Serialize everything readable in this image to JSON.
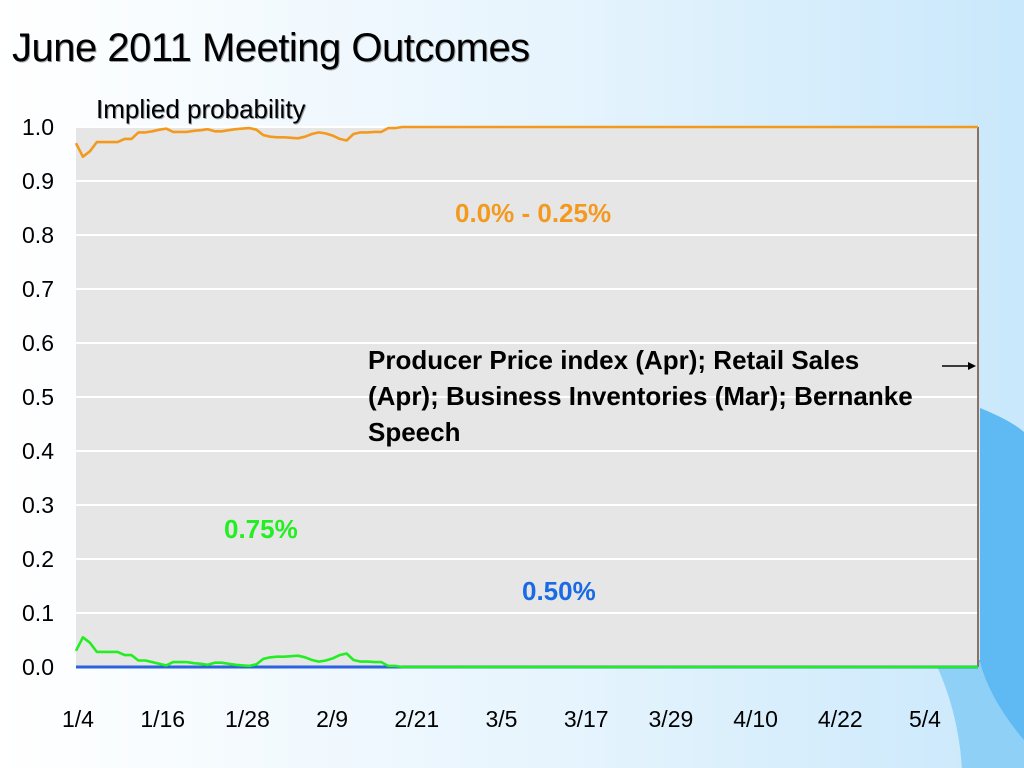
{
  "title": "June 2011 Meeting Outcomes",
  "subtitle": "Implied probability",
  "annotation": "Producer Price index (Apr); Retail Sales (Apr); Business Inventories (Mar); Bernanke Speech",
  "chart_data": {
    "type": "line",
    "ylim": [
      0,
      1
    ],
    "yticks": [
      "0.0",
      "0.1",
      "0.2",
      "0.3",
      "0.4",
      "0.5",
      "0.6",
      "0.7",
      "0.8",
      "0.9",
      "1.0"
    ],
    "xticks": [
      "1/4",
      "1/16",
      "1/28",
      "2/9",
      "2/21",
      "3/5",
      "3/17",
      "3/29",
      "4/10",
      "4/22",
      "5/4"
    ],
    "grid": true,
    "x_count": 130,
    "series": [
      {
        "name": "0.0% - 0.25%",
        "color": "#f39a1e",
        "points": [
          [
            0,
            0.97
          ],
          [
            1,
            0.945
          ],
          [
            2,
            0.955
          ],
          [
            3,
            0.972
          ],
          [
            4,
            0.972
          ],
          [
            5,
            0.972
          ],
          [
            6,
            0.972
          ],
          [
            7,
            0.978
          ],
          [
            8,
            0.978
          ],
          [
            9,
            0.99
          ],
          [
            10,
            0.99
          ],
          [
            11,
            0.992
          ],
          [
            12,
            0.995
          ],
          [
            13,
            0.997
          ],
          [
            14,
            0.991
          ],
          [
            15,
            0.991
          ],
          [
            16,
            0.991
          ],
          [
            17,
            0.993
          ],
          [
            18,
            0.994
          ],
          [
            19,
            0.996
          ],
          [
            20,
            0.992
          ],
          [
            21,
            0.992
          ],
          [
            22,
            0.994
          ],
          [
            23,
            0.996
          ],
          [
            24,
            0.997
          ],
          [
            25,
            0.998
          ],
          [
            26,
            0.995
          ],
          [
            27,
            0.985
          ],
          [
            28,
            0.982
          ],
          [
            29,
            0.981
          ],
          [
            30,
            0.981
          ],
          [
            31,
            0.98
          ],
          [
            32,
            0.979
          ],
          [
            33,
            0.982
          ],
          [
            34,
            0.987
          ],
          [
            35,
            0.99
          ],
          [
            36,
            0.988
          ],
          [
            37,
            0.984
          ],
          [
            38,
            0.978
          ],
          [
            39,
            0.975
          ],
          [
            40,
            0.987
          ],
          [
            41,
            0.99
          ],
          [
            42,
            0.99
          ],
          [
            43,
            0.991
          ],
          [
            44,
            0.991
          ],
          [
            45,
            0.998
          ],
          [
            46,
            0.998
          ],
          [
            47,
            1
          ],
          [
            130,
            1
          ]
        ]
      },
      {
        "name": "0.75%",
        "color": "#22ee22",
        "points": [
          [
            0,
            0.03
          ],
          [
            1,
            0.055
          ],
          [
            2,
            0.045
          ],
          [
            3,
            0.028
          ],
          [
            4,
            0.028
          ],
          [
            5,
            0.028
          ],
          [
            6,
            0.028
          ],
          [
            7,
            0.022
          ],
          [
            8,
            0.022
          ],
          [
            9,
            0.012
          ],
          [
            10,
            0.012
          ],
          [
            11,
            0.009
          ],
          [
            12,
            0.006
          ],
          [
            13,
            0.003
          ],
          [
            14,
            0.009
          ],
          [
            15,
            0.009
          ],
          [
            16,
            0.009
          ],
          [
            17,
            0.007
          ],
          [
            18,
            0.006
          ],
          [
            19,
            0.004
          ],
          [
            20,
            0.008
          ],
          [
            21,
            0.008
          ],
          [
            22,
            0.006
          ],
          [
            23,
            0.004
          ],
          [
            24,
            0.003
          ],
          [
            25,
            0.002
          ],
          [
            26,
            0.005
          ],
          [
            27,
            0.015
          ],
          [
            28,
            0.018
          ],
          [
            29,
            0.019
          ],
          [
            30,
            0.019
          ],
          [
            31,
            0.02
          ],
          [
            32,
            0.021
          ],
          [
            33,
            0.018
          ],
          [
            34,
            0.013
          ],
          [
            35,
            0.01
          ],
          [
            36,
            0.012
          ],
          [
            37,
            0.016
          ],
          [
            38,
            0.022
          ],
          [
            39,
            0.025
          ],
          [
            40,
            0.013
          ],
          [
            41,
            0.01
          ],
          [
            42,
            0.01
          ],
          [
            43,
            0.009
          ],
          [
            44,
            0.009
          ],
          [
            45,
            0.002
          ],
          [
            46,
            0.002
          ],
          [
            47,
            0
          ],
          [
            130,
            0
          ]
        ]
      },
      {
        "name": "0.50%",
        "color": "#2a62e0",
        "points": [
          [
            0,
            0
          ],
          [
            130,
            0
          ]
        ]
      }
    ],
    "labels": [
      {
        "text": "0.0% - 0.25%",
        "color": "#f39a1e"
      },
      {
        "text": "0.75%",
        "color": "#22ee22"
      },
      {
        "text": "0.50%",
        "color": "#1a6ae6"
      }
    ]
  }
}
